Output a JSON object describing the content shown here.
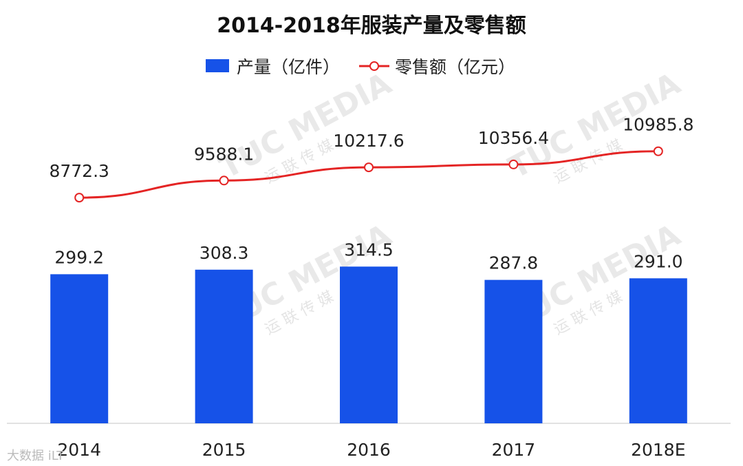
{
  "chart_data": {
    "type": "bar",
    "title": "2014-2018年服装产量及零售额",
    "categories": [
      "2014",
      "2015",
      "2016",
      "2017",
      "2018E"
    ],
    "series": [
      {
        "name": "产量（亿件）",
        "type": "bar",
        "axis": "left",
        "color": "#1652E8",
        "values": [
          299.2,
          308.3,
          314.5,
          287.8,
          291.0
        ],
        "labels": [
          "299.2",
          "308.3",
          "314.5",
          "287.8",
          "291.0"
        ]
      },
      {
        "name": "零售额（亿元）",
        "type": "line",
        "axis": "right",
        "color": "#E42424",
        "marker": "hollow-circle",
        "values": [
          8772.3,
          9588.1,
          10217.6,
          10356.4,
          10985.8
        ],
        "labels": [
          "8772.3",
          "9588.1",
          "10217.6",
          "10356.4",
          "10985.8"
        ]
      }
    ],
    "legend_position": "top-center",
    "grid": false,
    "axes": {
      "left_range": [
        0,
        500
      ],
      "right_range": [
        -2000,
        14000
      ]
    }
  },
  "watermark": {
    "brand": "TUC MEDIA",
    "sub": "运 联 传 媒",
    "corner": "大数据 iLT"
  }
}
